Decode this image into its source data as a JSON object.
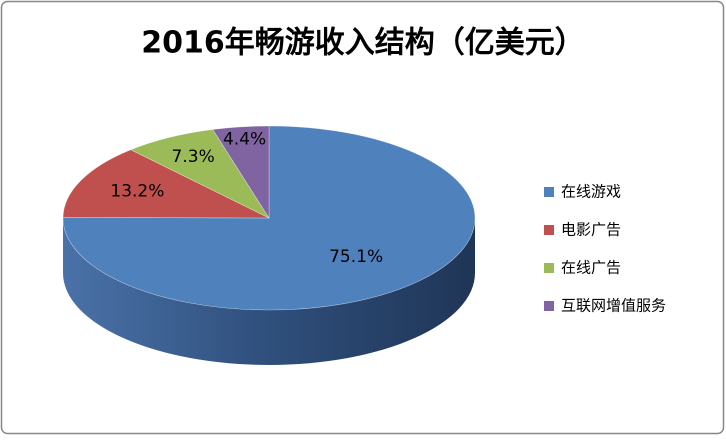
{
  "chart_data": {
    "type": "pie",
    "title": "2016年畅游收入结构（亿美元）",
    "categories": [
      "在线游戏",
      "电影广告",
      "在线广告",
      "互联网增值服务"
    ],
    "values": [
      75.1,
      13.2,
      7.3,
      4.4
    ],
    "value_labels": [
      "75.1%",
      "13.2%",
      "7.3%",
      "4.4%"
    ],
    "colors": [
      "#4f81bd",
      "#c0504d",
      "#9bbb59",
      "#8064a2"
    ],
    "legend": "right"
  }
}
